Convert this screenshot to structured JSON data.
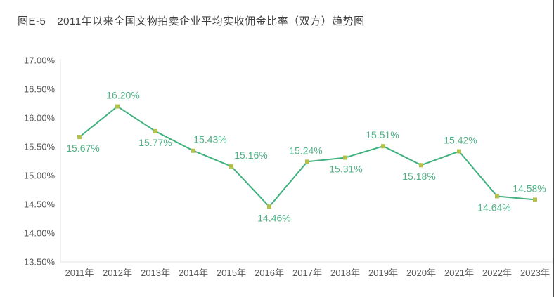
{
  "header": {
    "figure_no": "图E-5",
    "title": "2011年以来全国文物拍卖企业平均实收佣金比率（双方）趋势图"
  },
  "chart_data": {
    "type": "line",
    "title": "图E-5 2011年以来全国文物拍卖企业平均实收佣金比率（双方）趋势图",
    "x": [
      "2011年",
      "2012年",
      "2013年",
      "2014年",
      "2015年",
      "2016年",
      "2017年",
      "2018年",
      "2019年",
      "2020年",
      "2021年",
      "2022年",
      "2023年"
    ],
    "values": [
      15.67,
      16.2,
      15.77,
      15.43,
      15.16,
      14.46,
      15.24,
      15.31,
      15.51,
      15.18,
      15.42,
      14.64,
      14.58
    ],
    "labels": [
      "15.67%",
      "16.20%",
      "15.77%",
      "15.43%",
      "15.16%",
      "14.46%",
      "15.24%",
      "15.31%",
      "15.51%",
      "15.18%",
      "15.42%",
      "14.64%",
      "14.58%"
    ],
    "label_pos": [
      "below",
      "above",
      "below",
      "above",
      "above",
      "below",
      "above",
      "below",
      "above",
      "below",
      "above",
      "below",
      "above"
    ],
    "label_dx": [
      5,
      8,
      0,
      24,
      28,
      7,
      -2,
      1,
      -1,
      -3,
      2,
      -4,
      -8
    ],
    "ylim": [
      13.5,
      17.0
    ],
    "ytick_step": 0.5,
    "yticks": [
      "17.00%",
      "16.50%",
      "16.00%",
      "15.50%",
      "15.00%",
      "14.50%",
      "14.00%",
      "13.50%"
    ],
    "grid": "off",
    "legend": "none",
    "colors": {
      "line": "#3fb17e",
      "marker": "#b3c24f",
      "label_text": "#4fb286",
      "axis_line": "#e4e4e4",
      "axis_text": "#5a5a5a",
      "title_text": "#3f3f3f"
    }
  }
}
